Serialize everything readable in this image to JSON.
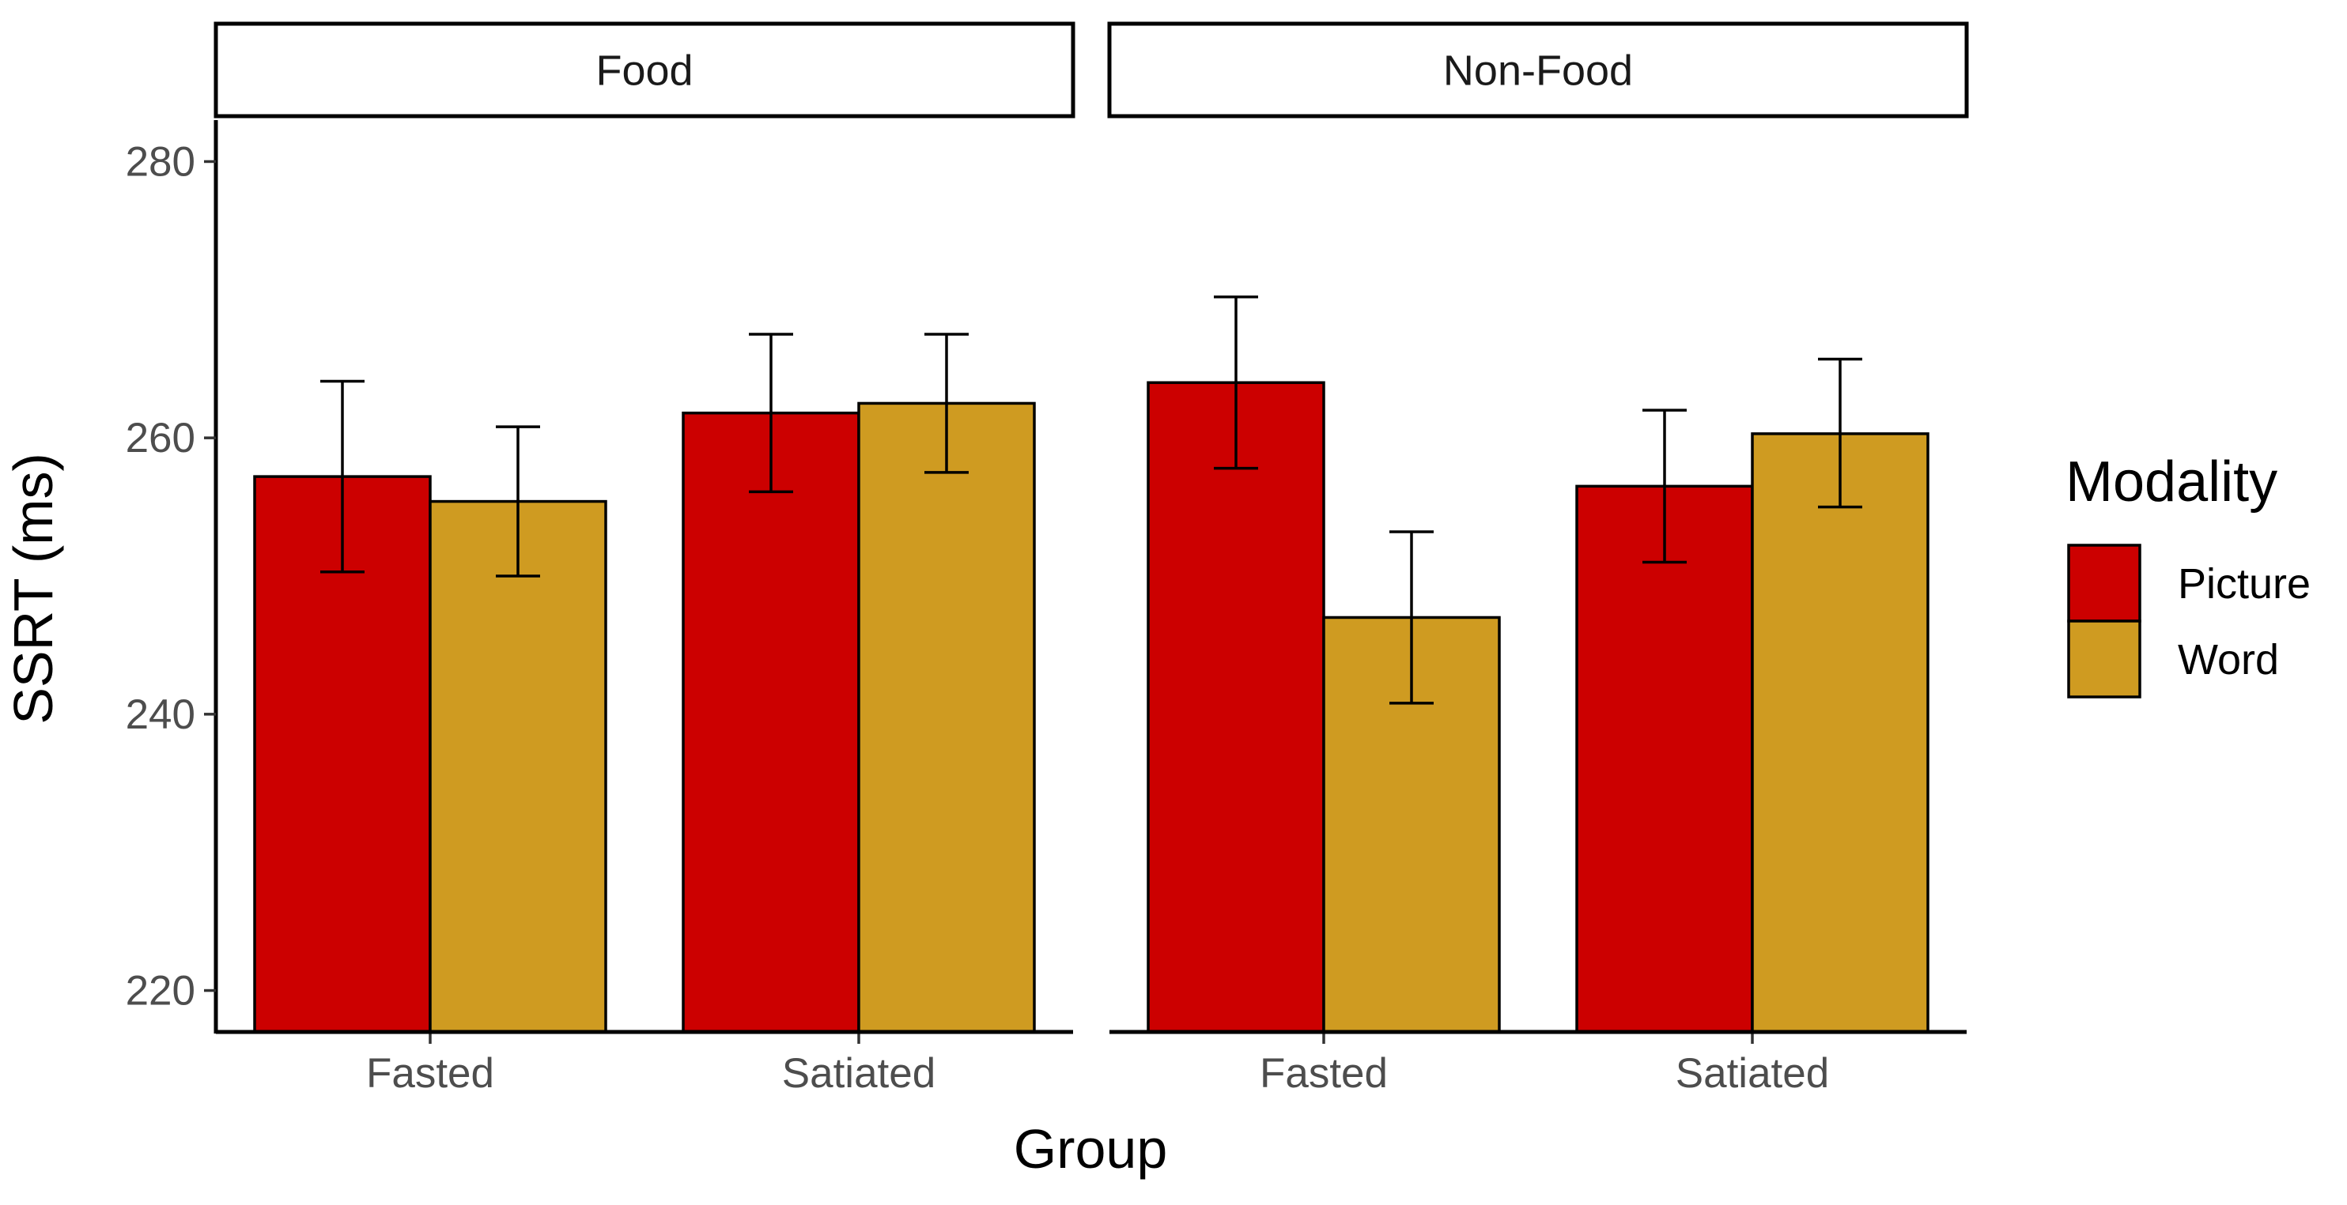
{
  "chart_data": {
    "type": "bar",
    "xlabel": "Group",
    "ylabel": "SSRT (ms)",
    "ylim": [
      217,
      283
    ],
    "yticks": [
      220,
      240,
      260,
      280
    ],
    "categories": [
      "Fasted",
      "Satiated"
    ],
    "legend": {
      "title": "Modality",
      "position": "right",
      "entries": [
        "Picture",
        "Word"
      ]
    },
    "colors": {
      "Picture": "#cc0000",
      "Word": "#cf9b21"
    },
    "grid": false,
    "error_bars": "mean ± error",
    "panels": [
      {
        "label": "Food",
        "series": [
          {
            "name": "Picture",
            "values": [
              257.2,
              261.8
            ],
            "err_low": [
              250.3,
              256.1
            ],
            "err_high": [
              264.1,
              267.5
            ]
          },
          {
            "name": "Word",
            "values": [
              255.4,
              262.5
            ],
            "err_low": [
              250.0,
              257.5
            ],
            "err_high": [
              260.8,
              267.5
            ]
          }
        ]
      },
      {
        "label": "Non-Food",
        "series": [
          {
            "name": "Picture",
            "values": [
              264.0,
              256.5
            ],
            "err_low": [
              257.8,
              251.0
            ],
            "err_high": [
              270.2,
              262.0
            ]
          },
          {
            "name": "Word",
            "values": [
              247.0,
              260.3
            ],
            "err_low": [
              240.8,
              255.0
            ],
            "err_high": [
              253.2,
              265.7
            ]
          }
        ]
      }
    ]
  }
}
